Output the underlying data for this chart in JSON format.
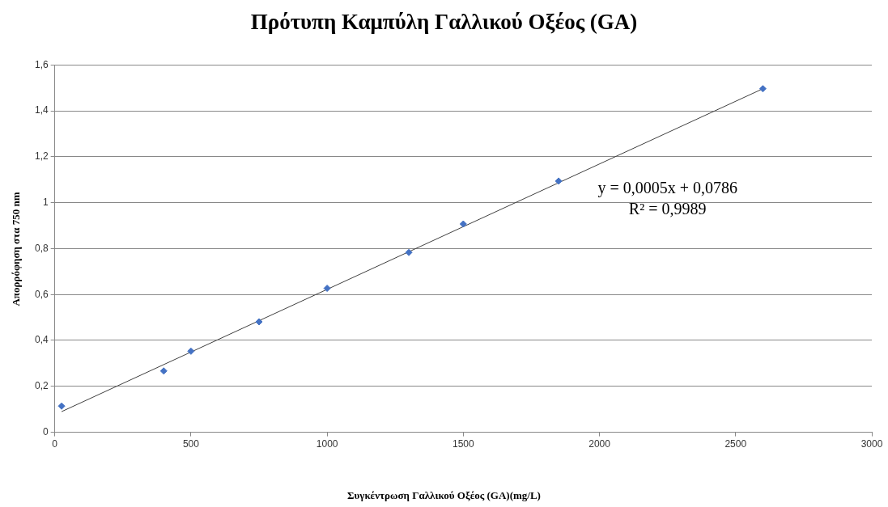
{
  "chart_data": {
    "type": "scatter",
    "title": "Πρότυπη Καμπύλη Γαλλικού Οξέος (GA)",
    "xlabel": "Συγκέντρωση Γαλλικού Οξέος (GA)(mg/L)",
    "ylabel": "Απορρόφηση στα 750 nm",
    "x": [
      25,
      400,
      500,
      750,
      1000,
      1300,
      1500,
      1850,
      2600
    ],
    "series": [
      {
        "color": "#4472c4",
        "values": [
          0.114,
          0.267,
          0.353,
          0.481,
          0.627,
          0.783,
          0.907,
          1.094,
          1.496
        ],
        "marker": "diamond"
      },
      {
        "type": "line",
        "color": "#404040",
        "x": [
          25,
          2600
        ],
        "values": [
          0.09,
          1.496
        ],
        "marker": "none"
      }
    ],
    "xlim": [
      0,
      3000
    ],
    "xticks": [
      0,
      500,
      1000,
      1500,
      2000,
      2500,
      3000
    ],
    "ylim": [
      0,
      1.6
    ],
    "yticks": [
      0,
      {
        "value": 0.2,
        "label": "0,2"
      },
      {
        "value": 0.4,
        "label": "0,4"
      },
      {
        "value": 0.6,
        "label": "0,6"
      },
      {
        "value": 0.8,
        "label": "0,8"
      },
      1,
      {
        "value": 1.2,
        "label": "1,2"
      },
      {
        "value": 1.4,
        "label": "1,4"
      },
      {
        "value": 1.6,
        "label": "1,6"
      }
    ],
    "grid": "y",
    "legend": false,
    "annotations": [
      "y = 0,0005x + 0,0786",
      "R² = 0,9989"
    ]
  }
}
